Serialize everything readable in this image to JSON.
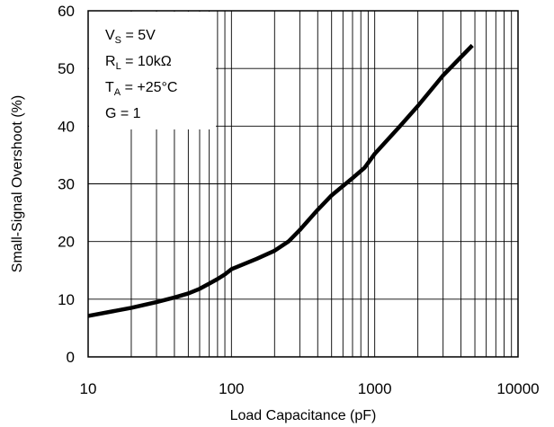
{
  "chart_data": {
    "type": "line",
    "xlabel": "Load Capacitance (pF)",
    "ylabel": "Small-Signal Overshoot (%)",
    "xscale": "log",
    "xlim": [
      10,
      10000
    ],
    "ylim": [
      0,
      60
    ],
    "grid": "x-log-minor, y-major",
    "x_ticks": [
      10,
      100,
      1000,
      10000
    ],
    "x_tick_labels": [
      "10",
      "100",
      "1000",
      "10000"
    ],
    "y_ticks": [
      0,
      10,
      20,
      30,
      40,
      50,
      60
    ],
    "y_tick_labels": [
      "0",
      "10",
      "20",
      "30",
      "40",
      "50",
      "60"
    ],
    "annotations": [
      {
        "pre": "V",
        "sub": "S",
        "post": " = 5V"
      },
      {
        "pre": "R",
        "sub": "L",
        "post": " = 10kΩ"
      },
      {
        "pre": "T",
        "sub": "A",
        "post": " = +25°C"
      },
      {
        "pre": "G = 1",
        "sub": "",
        "post": ""
      }
    ],
    "series": [
      {
        "color": "#000000",
        "x": [
          10,
          20,
          30,
          40,
          50,
          60,
          70,
          80,
          90,
          100,
          150,
          200,
          250,
          300,
          400,
          500,
          700,
          850,
          1000,
          1500,
          2000,
          3000,
          4800
        ],
        "y": [
          7.1,
          8.5,
          9.5,
          10.3,
          11.0,
          11.8,
          12.7,
          13.5,
          14.3,
          15.2,
          17.0,
          18.4,
          20.0,
          22.0,
          25.5,
          28.0,
          31.0,
          32.8,
          35.2,
          40.0,
          43.5,
          48.8,
          54.0
        ]
      }
    ]
  }
}
